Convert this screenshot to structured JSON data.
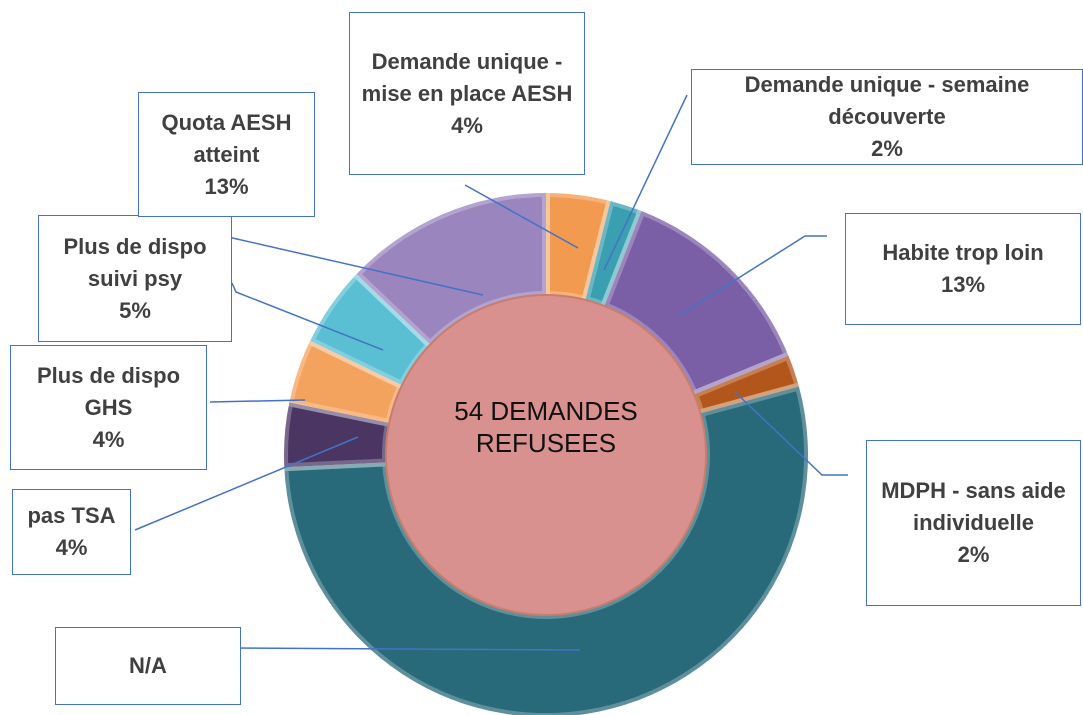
{
  "chart_data": {
    "type": "donut",
    "center_label": "54 DEMANDES REFUSEES",
    "categories": [
      "Demande unique - mise en place AESH",
      "Demande unique - semaine découverte",
      "Habite trop loin",
      "MDPH - sans aide individuelle",
      "N/A",
      "pas TSA",
      "Plus de dispo GHS",
      "Plus de dispo suivi psy",
      "Quota AESH atteint"
    ],
    "values": [
      4,
      2,
      13,
      2,
      54,
      4,
      4,
      5,
      13
    ],
    "value_labels": [
      "4%",
      "2%",
      "13%",
      "2%",
      null,
      "4%",
      "4%",
      "5%",
      "13%"
    ],
    "colors": [
      "#f29a50",
      "#3a9fb0",
      "#7a5ea6",
      "#b3561c",
      "#286a7a",
      "#4a3563",
      "#f4a35e",
      "#5bbfd3",
      "#9a85bf"
    ]
  }
}
